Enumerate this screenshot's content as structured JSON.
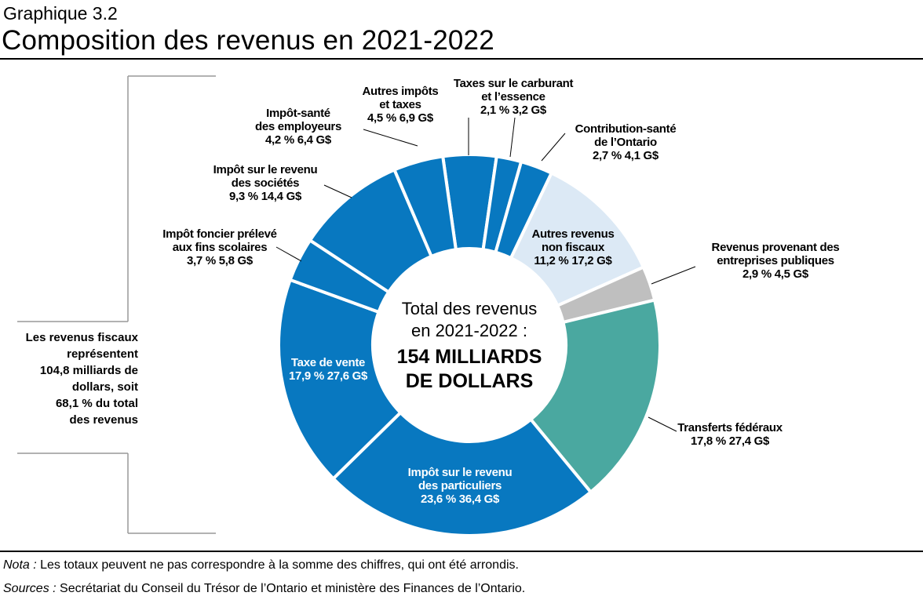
{
  "header": {
    "supertitle": "Graphique 3.2",
    "title": "Composition des revenus en 2021-2022"
  },
  "chart_data": {
    "type": "pie",
    "donut": true,
    "center_text": {
      "line1": "Total des revenus",
      "line2": "en 2021-2022 :",
      "line3": "154 MILLIARDS",
      "line4": "DE DOLLARS"
    },
    "slices": [
      {
        "name": "Autres impôts et taxes",
        "lines": [
          "Autres impôts",
          "et taxes"
        ],
        "pct_label": "4,5 %  6,9 G$",
        "percent": 4.5,
        "value": 6.9,
        "color": "#0878c0",
        "group": "fiscal"
      },
      {
        "name": "Taxes sur le carburant et l’essence",
        "lines": [
          "Taxes sur le carburant",
          "et l’essence"
        ],
        "pct_label": "2,1 %  3,2 G$",
        "percent": 2.1,
        "value": 3.2,
        "color": "#0878c0",
        "group": "fiscal"
      },
      {
        "name": "Contribution-santé de l’Ontario",
        "lines": [
          "Contribution-santé",
          "de l’Ontario"
        ],
        "pct_label": "2,7 %  4,1 G$",
        "percent": 2.7,
        "value": 4.1,
        "color": "#0878c0",
        "group": "fiscal"
      },
      {
        "name": "Autres revenus non fiscaux",
        "lines": [
          "Autres revenus",
          "non fiscaux"
        ],
        "pct_label": "11,2 %  17,2 G$",
        "percent": 11.2,
        "value": 17.2,
        "color": "#dce9f5",
        "group": "non-fiscal"
      },
      {
        "name": "Revenus provenant des entreprises publiques",
        "lines": [
          "Revenus provenant des",
          "entreprises publiques"
        ],
        "pct_label": "2,9 %  4,5 G$",
        "percent": 2.9,
        "value": 4.5,
        "color": "#bfbfbf",
        "group": "non-fiscal"
      },
      {
        "name": "Transferts fédéraux",
        "lines": [
          "Transferts fédéraux"
        ],
        "pct_label": "17,8 %  27,4 G$",
        "percent": 17.8,
        "value": 27.4,
        "color": "#4aa8a0",
        "group": "non-fiscal"
      },
      {
        "name": "Impôt sur le revenu des particuliers",
        "lines": [
          "Impôt sur le revenu",
          "des particuliers"
        ],
        "pct_label": "23,6 %  36,4 G$",
        "percent": 23.6,
        "value": 36.4,
        "color": "#0878c0",
        "group": "fiscal"
      },
      {
        "name": "Taxe de vente",
        "lines": [
          "Taxe de vente"
        ],
        "pct_label": "17,9 %  27,6 G$",
        "percent": 17.9,
        "value": 27.6,
        "color": "#0878c0",
        "group": "fiscal"
      },
      {
        "name": "Impôt foncier prélevé aux fins scolaires",
        "lines": [
          "Impôt foncier prélevé",
          "aux fins scolaires"
        ],
        "pct_label": "3,7 %  5,8 G$",
        "percent": 3.7,
        "value": 5.8,
        "color": "#0878c0",
        "group": "fiscal"
      },
      {
        "name": "Impôt sur le revenu des sociétés",
        "lines": [
          "Impôt sur le revenu",
          "des sociétés"
        ],
        "pct_label": "9,3 %  14,4 G$",
        "percent": 9.3,
        "value": 14.4,
        "color": "#0878c0",
        "group": "fiscal"
      },
      {
        "name": "Impôt-santé des employeurs",
        "lines": [
          "Impôt-santé",
          "des employeurs"
        ],
        "pct_label": "4,2 %  6,4 G$",
        "percent": 4.2,
        "value": 6.4,
        "color": "#0878c0",
        "group": "fiscal"
      }
    ],
    "bracket_text": [
      "Les revenus fiscaux",
      "représentent",
      "104,8 milliards de",
      "dollars, soit",
      "68,1 % du total",
      "des revenus"
    ]
  },
  "footer": {
    "note_label": "Nota :",
    "note_text": " Les totaux peuvent ne pas correspondre à la somme des chiffres, qui ont été arrondis.",
    "sources_label": "Sources :",
    "sources_text": " Secrétariat du Conseil du Trésor de l’Ontario et ministère des Finances de l’Ontario."
  }
}
